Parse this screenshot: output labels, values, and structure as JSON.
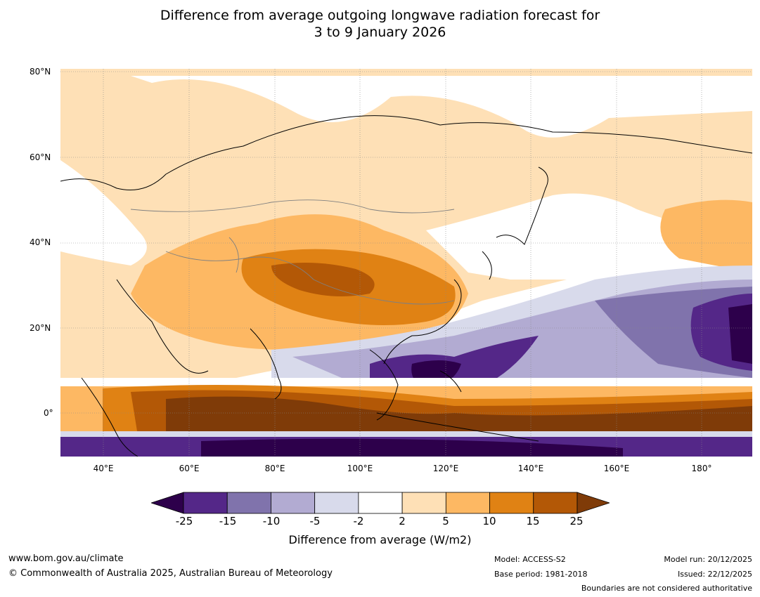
{
  "title": {
    "line1": "Difference from average outgoing longwave radiation forecast for",
    "line2": "3 to 9 January 2026"
  },
  "map": {
    "lat_labels": [
      "80°N",
      "60°N",
      "40°N",
      "20°N",
      "0°"
    ],
    "lon_labels": [
      "40°E",
      "60°E",
      "80°E",
      "100°E",
      "120°E",
      "140°E",
      "160°E",
      "180°"
    ],
    "colors": {
      "ocean_default": "#ffffff",
      "coast": "#000000",
      "borders": "#808080"
    }
  },
  "colorbar": {
    "ticks": [
      "-25",
      "-15",
      "-10",
      "-5",
      "-2",
      "2",
      "5",
      "10",
      "15",
      "25"
    ],
    "colors": [
      "#2d004b",
      "#542788",
      "#8073ac",
      "#b2abd2",
      "#d8daeb",
      "#ffffff",
      "#fee0b6",
      "#fdb863",
      "#e08214",
      "#b35806",
      "#7f3b08"
    ],
    "label": "Difference from average (W/m2)"
  },
  "footer": {
    "url": "www.bom.gov.au/climate",
    "copyright": "© Commonwealth of Australia 2025, Australian Bureau of Meteorology",
    "model": "Model: ACCESS-S2",
    "base_period": "Base period: 1981-2018",
    "model_run": "Model run: 20/12/2025",
    "issued": "Issued: 22/12/2025",
    "disclaimer": "Boundaries are not considered authoritative"
  }
}
